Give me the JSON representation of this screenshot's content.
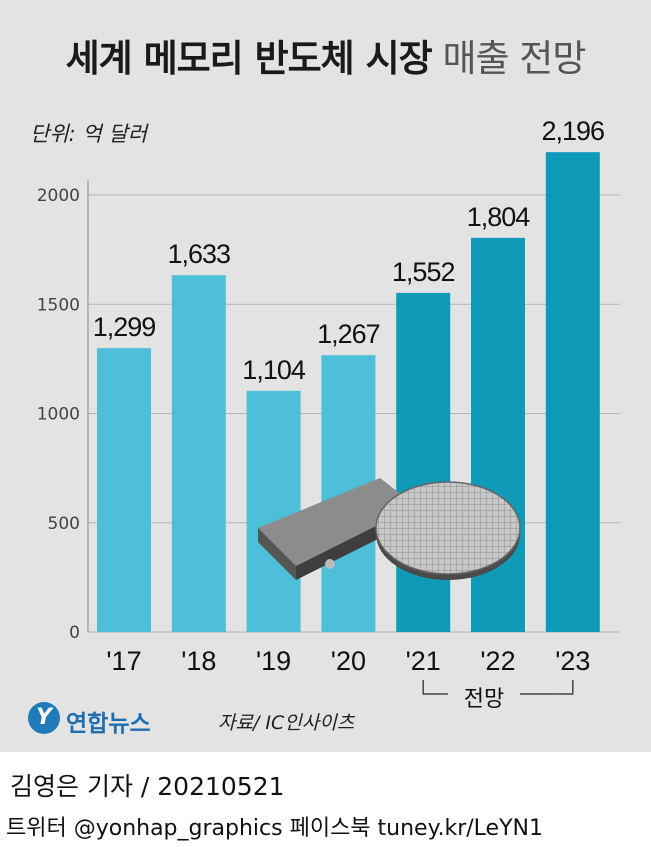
{
  "title_bold": "세계 메모리 반도체 시장",
  "title_light": "매출 전망",
  "unit": "단위: 억 달러",
  "forecast_label": "전망",
  "source_brand": "연합뉴스",
  "source_logo_letter": "Y",
  "source_text": "자료/ IC인사이츠",
  "credit": "김영은 기자 / 20210521",
  "social": "트위터 @yonhap_graphics  페이스북 tuney.kr/LeYN1",
  "colors": {
    "actual": "#4ebfd8",
    "forecast": "#0f9ab8",
    "background": "#e3e3e3"
  },
  "chart_data": {
    "type": "bar",
    "categories": [
      "'17",
      "'18",
      "'19",
      "'20",
      "'21",
      "'22",
      "'23"
    ],
    "values": [
      1299,
      1633,
      1104,
      1267,
      1552,
      1804,
      2196
    ],
    "value_labels": [
      "1,299",
      "1,633",
      "1,104",
      "1,267",
      "1,552",
      "1,804",
      "2,196"
    ],
    "forecast": [
      false,
      false,
      false,
      false,
      true,
      true,
      true
    ],
    "yticks": [
      0,
      500,
      1000,
      1500,
      2000
    ],
    "ylim": [
      0,
      2300
    ],
    "grid": true
  }
}
